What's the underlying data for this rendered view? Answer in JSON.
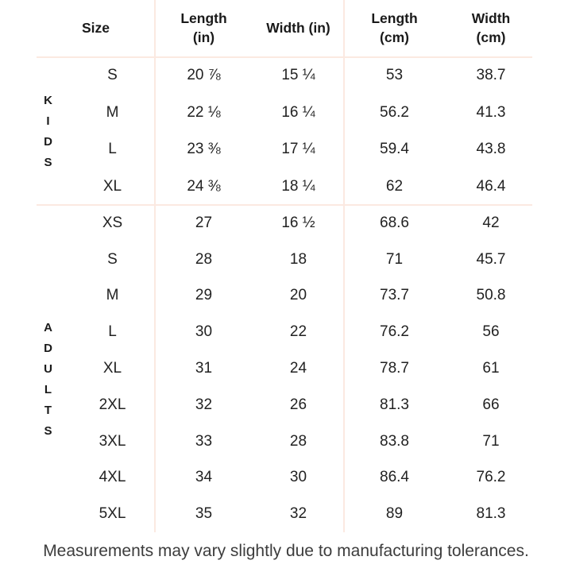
{
  "table": {
    "columns": [
      "Size",
      "Length\n(in)",
      "Width (in)",
      "Length\n(cm)",
      "Width\n(cm)"
    ],
    "groups": [
      {
        "label": "KIDS",
        "rows": [
          [
            "S",
            "20 ⅞",
            "15 ¼",
            "53",
            "38.7"
          ],
          [
            "M",
            "22 ⅛",
            "16 ¼",
            "56.2",
            "41.3"
          ],
          [
            "L",
            "23 ⅜",
            "17 ¼",
            "59.4",
            "43.8"
          ],
          [
            "XL",
            "24 ⅜",
            "18 ¼",
            "62",
            "46.4"
          ]
        ]
      },
      {
        "label": "ADULTS",
        "rows": [
          [
            "XS",
            "27",
            "16 ½",
            "68.6",
            "42"
          ],
          [
            "S",
            "28",
            "18",
            "71",
            "45.7"
          ],
          [
            "M",
            "29",
            "20",
            "73.7",
            "50.8"
          ],
          [
            "L",
            "30",
            "22",
            "76.2",
            "56"
          ],
          [
            "XL",
            "31",
            "24",
            "78.7",
            "61"
          ],
          [
            "2XL",
            "32",
            "26",
            "81.3",
            "66"
          ],
          [
            "3XL",
            "33",
            "28",
            "83.8",
            "71"
          ],
          [
            "4XL",
            "34",
            "30",
            "86.4",
            "76.2"
          ],
          [
            "5XL",
            "35",
            "32",
            "89",
            "81.3"
          ]
        ]
      }
    ]
  },
  "footer": {
    "note": "Measurements may vary slightly due to manufacturing tolerances."
  },
  "colors": {
    "divider": "#fbe9e1",
    "text": "#1e1e1e"
  }
}
